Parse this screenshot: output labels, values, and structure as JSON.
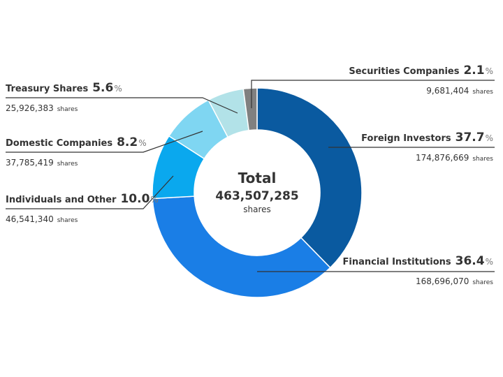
{
  "chart_data": {
    "type": "donut",
    "categories": [
      "Foreign Investors",
      "Financial Institutions",
      "Individuals and Other",
      "Domestic Companies",
      "Treasury Shares",
      "Securities Companies"
    ],
    "values": [
      37.7,
      36.4,
      10.0,
      8.2,
      5.6,
      2.1
    ],
    "value_labels": [
      "37.7",
      "36.4",
      "10.0",
      "8.2",
      "5.6",
      "2.1"
    ],
    "unit": "%",
    "shares": [
      "174,876,669",
      "168,696,070",
      "46,541,340",
      "37,785,419",
      "25,926,383",
      "9,681,404"
    ],
    "shares_unit": "shares",
    "colors": [
      "#0a5aa0",
      "#1a7ee6",
      "#0aa8ee",
      "#7fd6f2",
      "#b2e2e8",
      "#808080"
    ],
    "center_title": "Total",
    "total": "463,507,285",
    "total_unit": "shares"
  }
}
